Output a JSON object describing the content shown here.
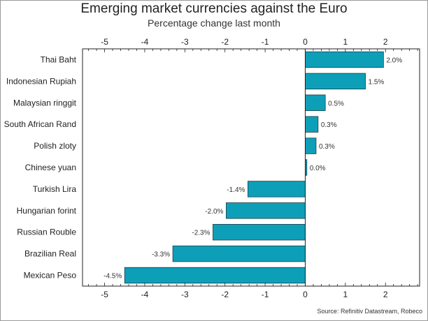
{
  "chart_data": {
    "type": "bar",
    "orientation": "horizontal",
    "title": "Emerging market currencies against the Euro",
    "subtitle": "Percentage change last month",
    "source": "Source: Refinitiv Datastream, Robeco",
    "categories": [
      "Thai Baht",
      "Indonesian Rupiah",
      "Malaysian ringgit",
      "South African Rand",
      "Polish zloty",
      "Chinese yuan",
      "Turkish Lira",
      "Hungarian forint",
      "Russian Rouble",
      "Brazilian Real",
      "Mexican Peso"
    ],
    "values": [
      1.95,
      1.5,
      0.5,
      0.32,
      0.27,
      0.04,
      -1.43,
      -1.97,
      -2.3,
      -3.3,
      -4.5
    ],
    "data_labels": [
      "2.0%",
      "1.5%",
      "0.5%",
      "0.3%",
      "0.3%",
      "0.0%",
      "-1.4%",
      "-2.0%",
      "-2.3%",
      "-3.3%",
      "-4.5%"
    ],
    "xlim": [
      -5.55,
      2.85
    ],
    "xticks": [
      -5,
      -4,
      -3,
      -2,
      -1,
      0,
      1,
      2
    ],
    "xtick_labels": [
      "-5",
      "-4",
      "-3",
      "-2",
      "-1",
      "0",
      "1",
      "2"
    ],
    "bar_color": "#0e9fb8",
    "grid": false,
    "legend": "none"
  }
}
